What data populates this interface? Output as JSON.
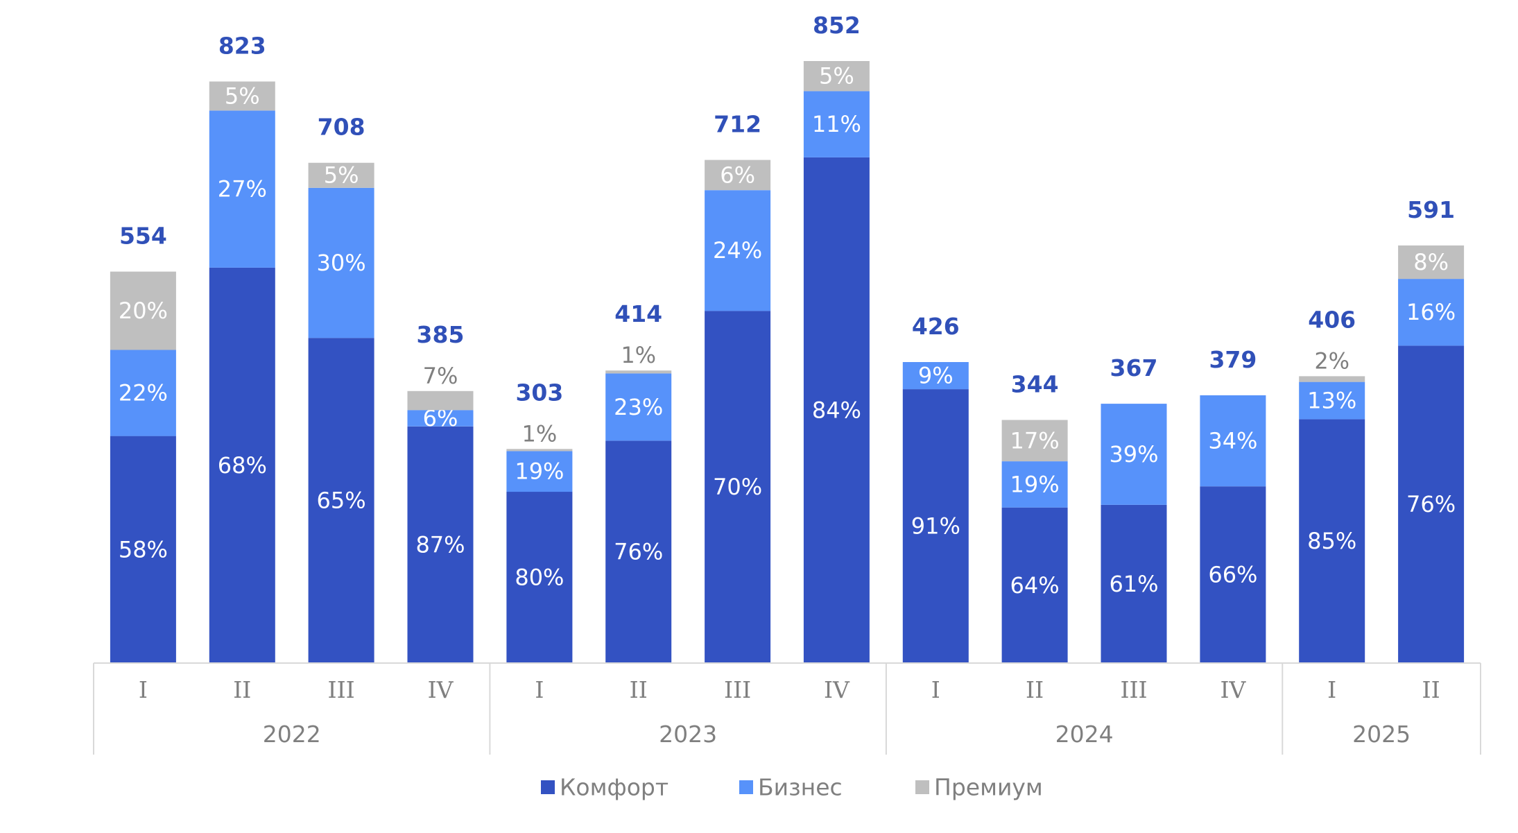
{
  "chart_data": {
    "type": "bar",
    "stacked": true,
    "groups": [
      {
        "label": "2022",
        "categories": [
          "I",
          "II",
          "III",
          "IV"
        ]
      },
      {
        "label": "2023",
        "categories": [
          "I",
          "II",
          "III",
          "IV"
        ]
      },
      {
        "label": "2024",
        "categories": [
          "I",
          "II",
          "III",
          "IV"
        ]
      },
      {
        "label": "2025",
        "categories": [
          "I",
          "II"
        ]
      }
    ],
    "totals": [
      554,
      823,
      708,
      385,
      303,
      414,
      712,
      852,
      426,
      344,
      367,
      379,
      406,
      591
    ],
    "series": [
      {
        "name": "Комфорт",
        "color": "#3352c2",
        "label_color": "#ffffff",
        "shares_pct": [
          58,
          68,
          65,
          87,
          80,
          76,
          70,
          84,
          91,
          64,
          61,
          66,
          85,
          76
        ]
      },
      {
        "name": "Бизнес",
        "color": "#5792fa",
        "label_color": "#ffffff",
        "shares_pct": [
          22,
          27,
          30,
          6,
          19,
          23,
          24,
          11,
          9,
          19,
          39,
          34,
          13,
          16
        ]
      },
      {
        "name": "Премиум",
        "color": "#bfbfbf",
        "label_color": "#ffffff",
        "label_color_outside": "#7f7f7f",
        "shares_pct": [
          20,
          5,
          5,
          7,
          1,
          1,
          6,
          5,
          null,
          17,
          null,
          null,
          2,
          8
        ]
      }
    ],
    "colors": {
      "total_label": "#3050b8",
      "axis_line": "#d9d9d9",
      "axis_text": "#7f7f7f"
    },
    "ylim": [
      0,
      900
    ],
    "grid": false,
    "legend_position": "bottom"
  }
}
